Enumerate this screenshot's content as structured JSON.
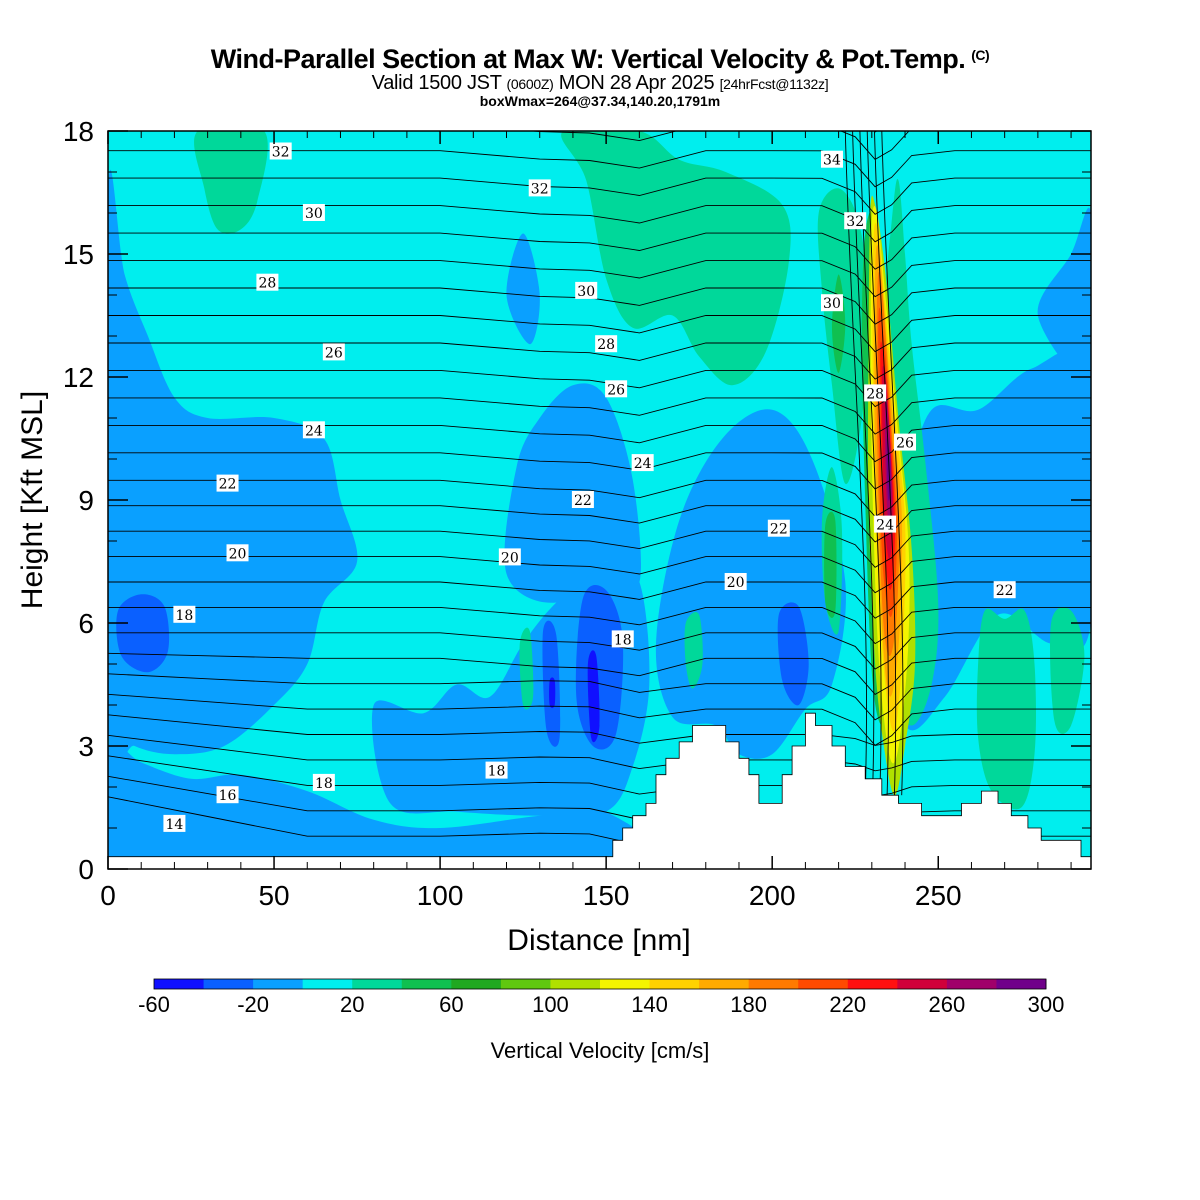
{
  "title": {
    "main": "Wind-Parallel Section at Max W: Vertical Velocity & Pot.Temp.",
    "copyright": "(C)",
    "valid_prefix": "Valid 1500 JST",
    "valid_utc": "(0600Z)",
    "valid_date": "MON 28 Apr 2025",
    "forecast": "[24hrFcst@1132z]",
    "box": "boxWmax=264@37.34,140.20,1791m"
  },
  "chart_data": {
    "type": "heatmap",
    "xlabel": "Distance [nm]",
    "ylabel": "Height [Kft MSL]",
    "xlim": [
      0,
      296
    ],
    "ylim": [
      0,
      18
    ],
    "x_ticks": [
      0,
      50,
      100,
      150,
      200,
      250
    ],
    "y_ticks": [
      0,
      3,
      6,
      9,
      12,
      15,
      18
    ],
    "colorbar": {
      "label": "Vertical Velocity [cm/s]",
      "tick_labels": [
        "-60",
        "-20",
        "20",
        "60",
        "100",
        "140",
        "180",
        "220",
        "260",
        "300"
      ],
      "tick_values": [
        -60,
        -20,
        20,
        60,
        100,
        140,
        180,
        220,
        260,
        300
      ],
      "bins": [
        -60,
        -40,
        -20,
        0,
        20,
        40,
        60,
        80,
        100,
        120,
        140,
        160,
        180,
        200,
        220,
        240,
        260,
        280,
        300
      ],
      "colors": [
        "#1010ff",
        "#0a60ff",
        "#0aa0ff",
        "#00eeee",
        "#00d89a",
        "#10c050",
        "#20a820",
        "#60c810",
        "#b0e000",
        "#f4f400",
        "#ffd200",
        "#ffaa00",
        "#ff7a00",
        "#ff4a00",
        "#ff1010",
        "#d0003a",
        "#a0006a",
        "#70008a"
      ]
    },
    "terrain": [
      [
        0,
        0.3
      ],
      [
        150,
        0.3
      ],
      [
        152,
        0.7
      ],
      [
        155,
        1
      ],
      [
        158,
        1.3
      ],
      [
        162,
        1.6
      ],
      [
        165,
        2.3
      ],
      [
        168,
        2.7
      ],
      [
        172,
        3.1
      ],
      [
        176,
        3.5
      ],
      [
        183,
        3.5
      ],
      [
        186,
        3.1
      ],
      [
        190,
        2.7
      ],
      [
        193,
        2.3
      ],
      [
        196,
        1.6
      ],
      [
        200,
        1.6
      ],
      [
        203,
        2.3
      ],
      [
        206,
        3
      ],
      [
        210,
        3.8
      ],
      [
        213,
        3.5
      ],
      [
        218,
        3.0
      ],
      [
        222,
        2.5
      ],
      [
        228,
        2.2
      ],
      [
        233,
        1.8
      ],
      [
        238,
        1.6
      ],
      [
        245,
        1.3
      ],
      [
        252,
        1.3
      ],
      [
        257,
        1.6
      ],
      [
        263,
        1.9
      ],
      [
        268,
        1.6
      ],
      [
        272,
        1.3
      ],
      [
        277,
        1.0
      ],
      [
        281,
        0.7
      ],
      [
        289,
        0.7
      ],
      [
        293,
        0.3
      ],
      [
        296,
        0.3
      ]
    ],
    "isentrope_labels": [
      {
        "text": "32",
        "x": 52,
        "y": 17.5
      },
      {
        "text": "32",
        "x": 130,
        "y": 16.6
      },
      {
        "text": "34",
        "x": 218,
        "y": 17.3
      },
      {
        "text": "32",
        "x": 225,
        "y": 15.8
      },
      {
        "text": "30",
        "x": 62,
        "y": 16.0
      },
      {
        "text": "30",
        "x": 144,
        "y": 14.1
      },
      {
        "text": "30",
        "x": 218,
        "y": 13.8
      },
      {
        "text": "28",
        "x": 48,
        "y": 14.3
      },
      {
        "text": "28",
        "x": 150,
        "y": 12.8
      },
      {
        "text": "28",
        "x": 231,
        "y": 11.6
      },
      {
        "text": "26",
        "x": 68,
        "y": 12.6
      },
      {
        "text": "26",
        "x": 153,
        "y": 11.7
      },
      {
        "text": "26",
        "x": 240,
        "y": 10.4
      },
      {
        "text": "24",
        "x": 62,
        "y": 10.7
      },
      {
        "text": "24",
        "x": 161,
        "y": 9.9
      },
      {
        "text": "24",
        "x": 234,
        "y": 8.4
      },
      {
        "text": "22",
        "x": 36,
        "y": 9.4
      },
      {
        "text": "22",
        "x": 143,
        "y": 9.0
      },
      {
        "text": "22",
        "x": 202,
        "y": 8.3
      },
      {
        "text": "22",
        "x": 270,
        "y": 6.8
      },
      {
        "text": "20",
        "x": 39,
        "y": 7.7
      },
      {
        "text": "20",
        "x": 121,
        "y": 7.6
      },
      {
        "text": "20",
        "x": 189,
        "y": 7.0
      },
      {
        "text": "18",
        "x": 23,
        "y": 6.2
      },
      {
        "text": "18",
        "x": 155,
        "y": 5.6
      },
      {
        "text": "18",
        "x": 65,
        "y": 2.1
      },
      {
        "text": "18",
        "x": 117,
        "y": 2.4
      },
      {
        "text": "16",
        "x": 36,
        "y": 1.8
      },
      {
        "text": "14",
        "x": 20,
        "y": 1.1
      }
    ]
  }
}
